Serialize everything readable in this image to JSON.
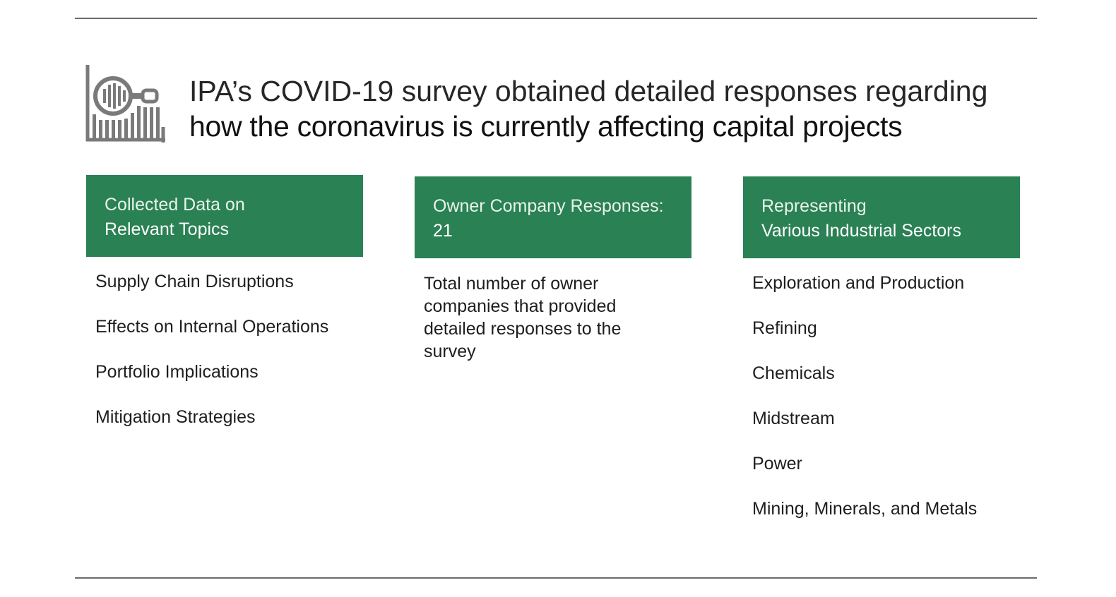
{
  "title": {
    "line1": "IPA’s COVID-19 survey obtained detailed responses regarding",
    "line2": "how the coronavirus is currently affecting capital projects"
  },
  "icon": "magnifier-over-bar-chart-icon",
  "accent_color": "#2a8154",
  "columns": [
    {
      "heading_line1": "Collected Data on",
      "heading_line2": "Relevant Topics",
      "items": [
        "Supply Chain Disruptions",
        "Effects on Internal Operations",
        "Portfolio Implications",
        "Mitigation Strategies"
      ]
    },
    {
      "heading_line1": "Owner Company Responses:",
      "heading_line2": "21",
      "description": "Total number of owner companies that provided detailed responses to the survey"
    },
    {
      "heading_line1": "Representing",
      "heading_line2": "Various Industrial Sectors",
      "items": [
        "Exploration and Production",
        "Refining",
        "Chemicals",
        "Midstream",
        "Power",
        "Mining, Minerals, and Metals"
      ]
    }
  ]
}
